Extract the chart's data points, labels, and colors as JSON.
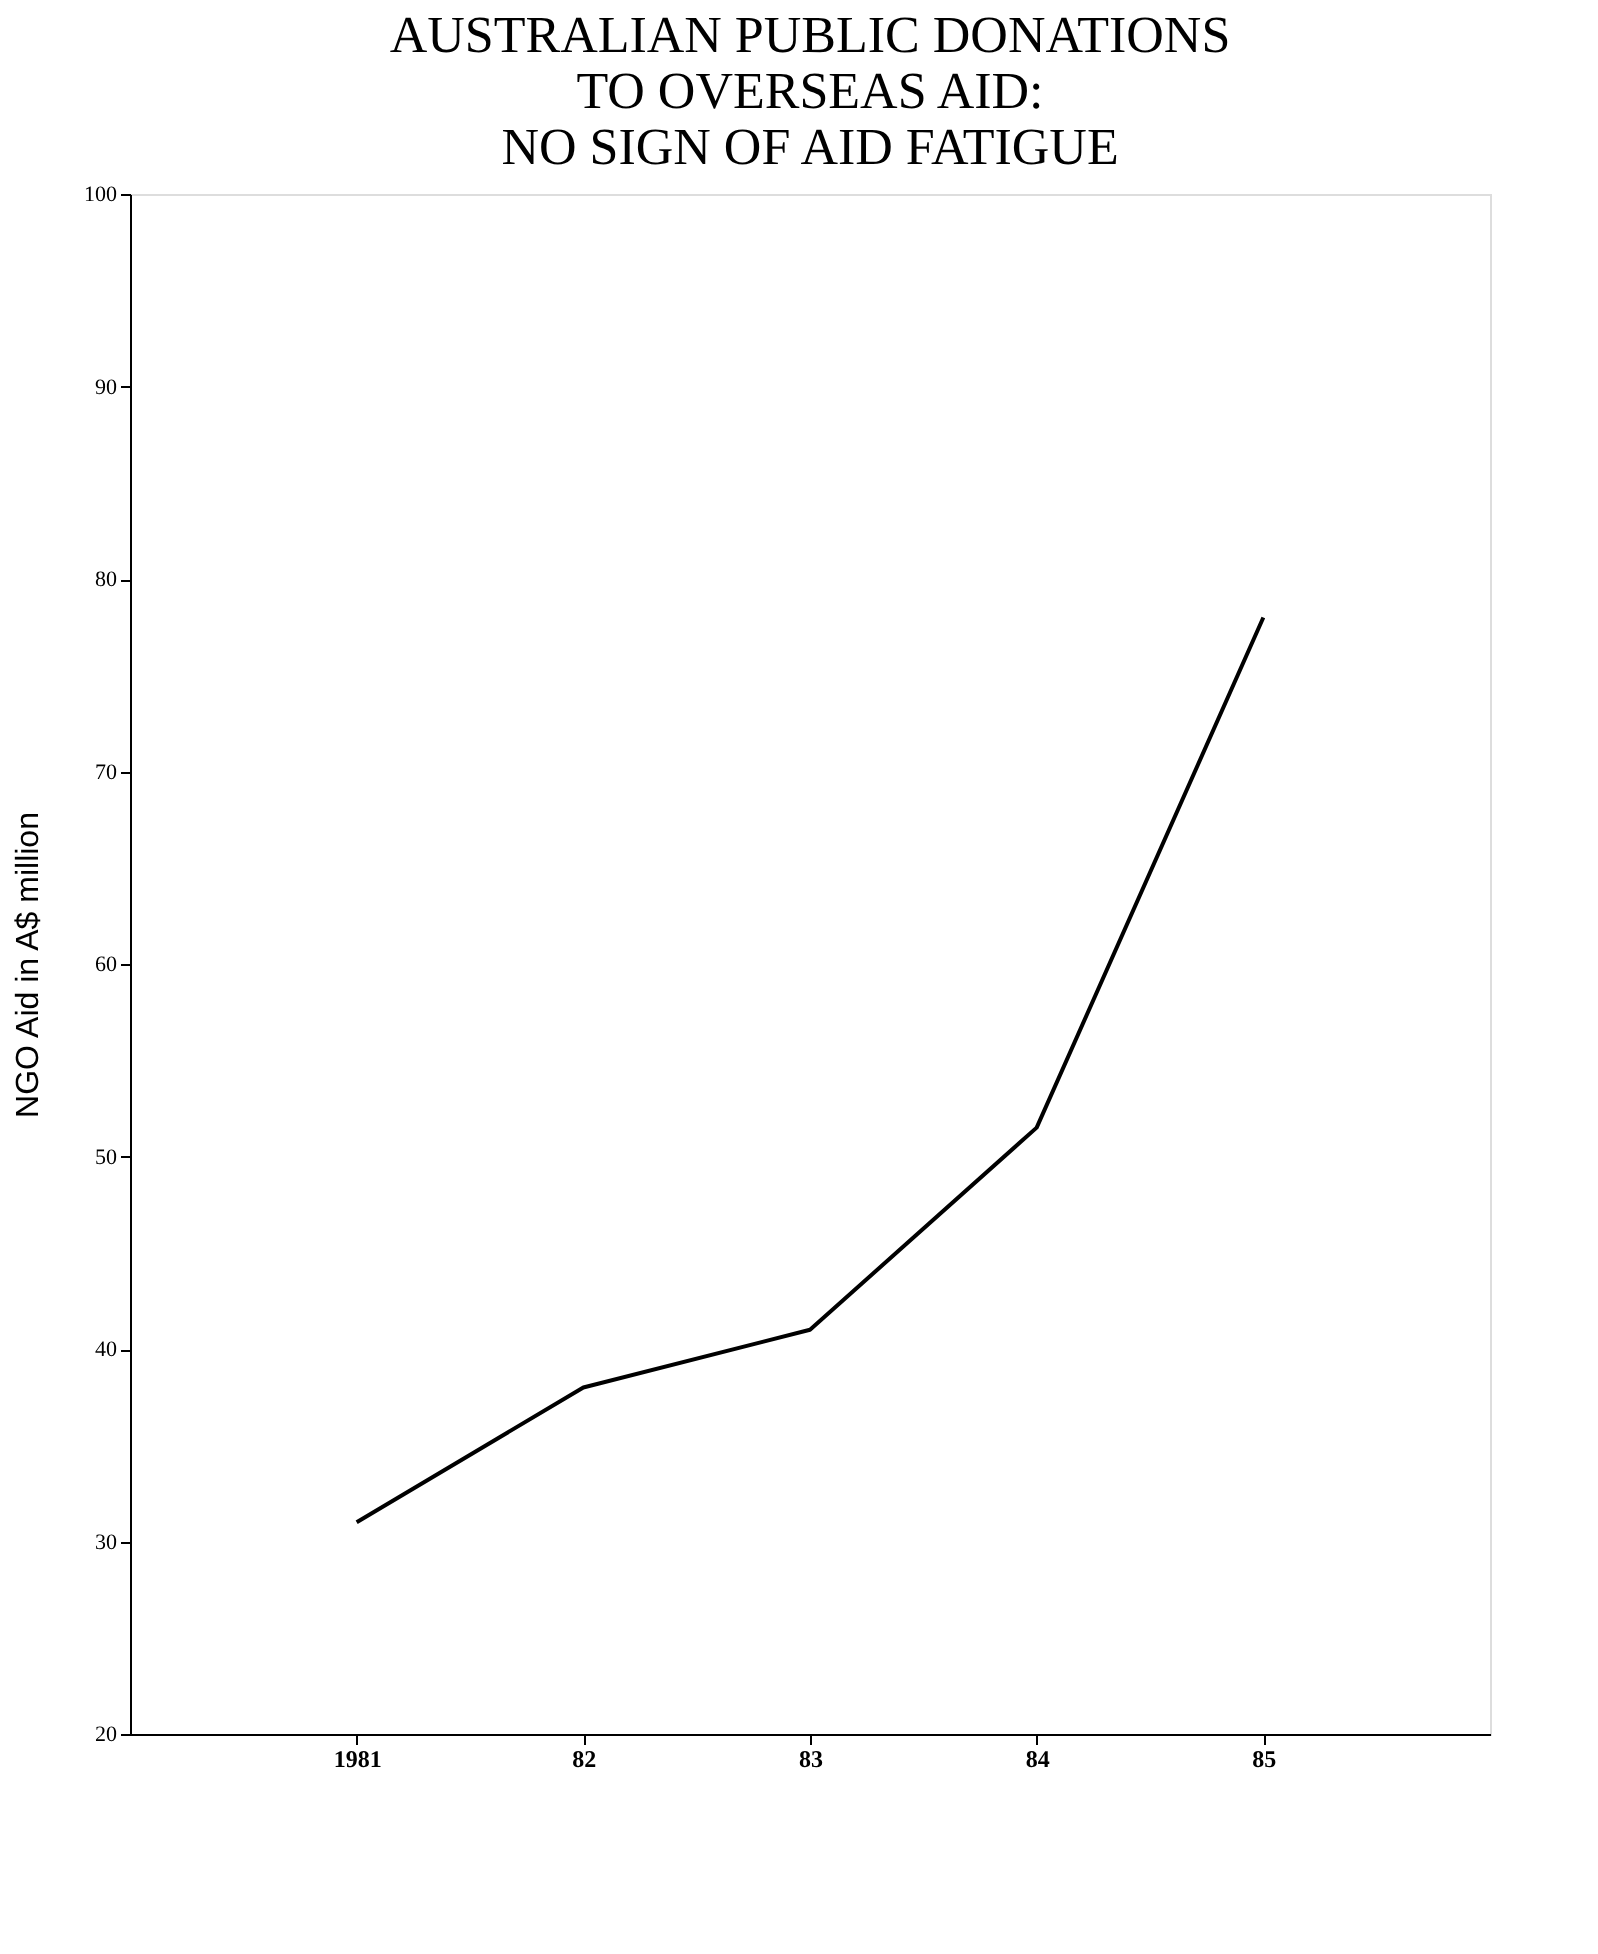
{
  "chart_data": {
    "type": "line",
    "title": "AUSTRALIAN PUBLIC DONATIONS\nTO OVERSEAS AID:\nNO SIGN OF AID FATIGUE",
    "ylabel": "NGO Aid in A$ million",
    "categories": [
      "1981",
      "82",
      "83",
      "84",
      "85"
    ],
    "series": [
      {
        "color": "#000000",
        "values": [
          31,
          38,
          41,
          51.5,
          78
        ]
      }
    ],
    "ylim": [
      20,
      100
    ],
    "yticks": [
      20,
      30,
      40,
      50,
      60,
      70,
      80,
      90,
      100
    ],
    "grid": false,
    "legend": false,
    "marker": "none",
    "line_style": "solid"
  }
}
